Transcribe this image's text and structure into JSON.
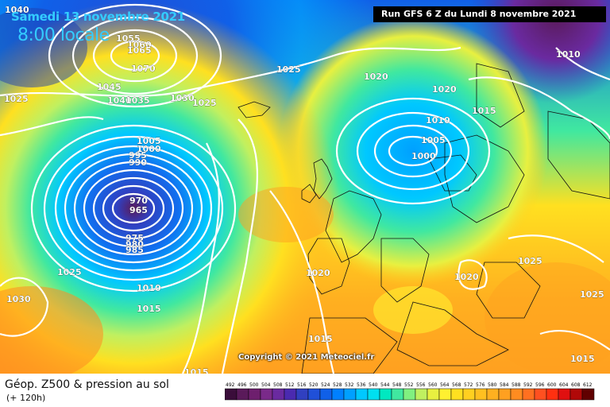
{
  "header": {
    "date": "Samedi 13 novembre 2021",
    "time": "8:00 locale",
    "run": "Run GFS 6 Z du Lundi 8 novembre 2021"
  },
  "footer": {
    "product": "Géop. Z500 & pression au sol",
    "lead": "(+ 120h)",
    "copyright": "Copyright © 2021 Meteociel.fr"
  },
  "legend": {
    "values": [
      "492",
      "496",
      "500",
      "504",
      "508",
      "512",
      "516",
      "520",
      "524",
      "528",
      "532",
      "536",
      "540",
      "544",
      "548",
      "552",
      "556",
      "560",
      "564",
      "568",
      "572",
      "576",
      "580",
      "584",
      "588",
      "592",
      "596",
      "600",
      "604",
      "608",
      "612"
    ],
    "colors": [
      "#3a0d3a",
      "#5a1a5a",
      "#6e1f6e",
      "#7a2a8a",
      "#6a2aa0",
      "#4a2ab0",
      "#3040c0",
      "#2050d8",
      "#1060e8",
      "#0080ff",
      "#00a0ff",
      "#00c8ff",
      "#00e0f0",
      "#00e8c0",
      "#40e8a0",
      "#80f080",
      "#c0f060",
      "#e8f040",
      "#fff030",
      "#ffe020",
      "#ffd020",
      "#ffc020",
      "#ffb020",
      "#ffa020",
      "#ff8c20",
      "#ff7020",
      "#ff5020",
      "#ff3010",
      "#e01010",
      "#b00808",
      "#600000"
    ]
  },
  "isobar_labels": [
    "1040",
    "1025",
    "1055",
    "1060",
    "1065",
    "1070",
    "1045",
    "1040",
    "1035",
    "1030",
    "1025",
    "1025",
    "1020",
    "1020",
    "1015",
    "1010",
    "1005",
    "1000",
    "1005",
    "1000",
    "995",
    "990",
    "970",
    "965",
    "975",
    "980",
    "985",
    "1025",
    "1030",
    "1010",
    "1015",
    "1020",
    "1015",
    "1015",
    "1020",
    "1025",
    "1025",
    "1015",
    "1010"
  ]
}
